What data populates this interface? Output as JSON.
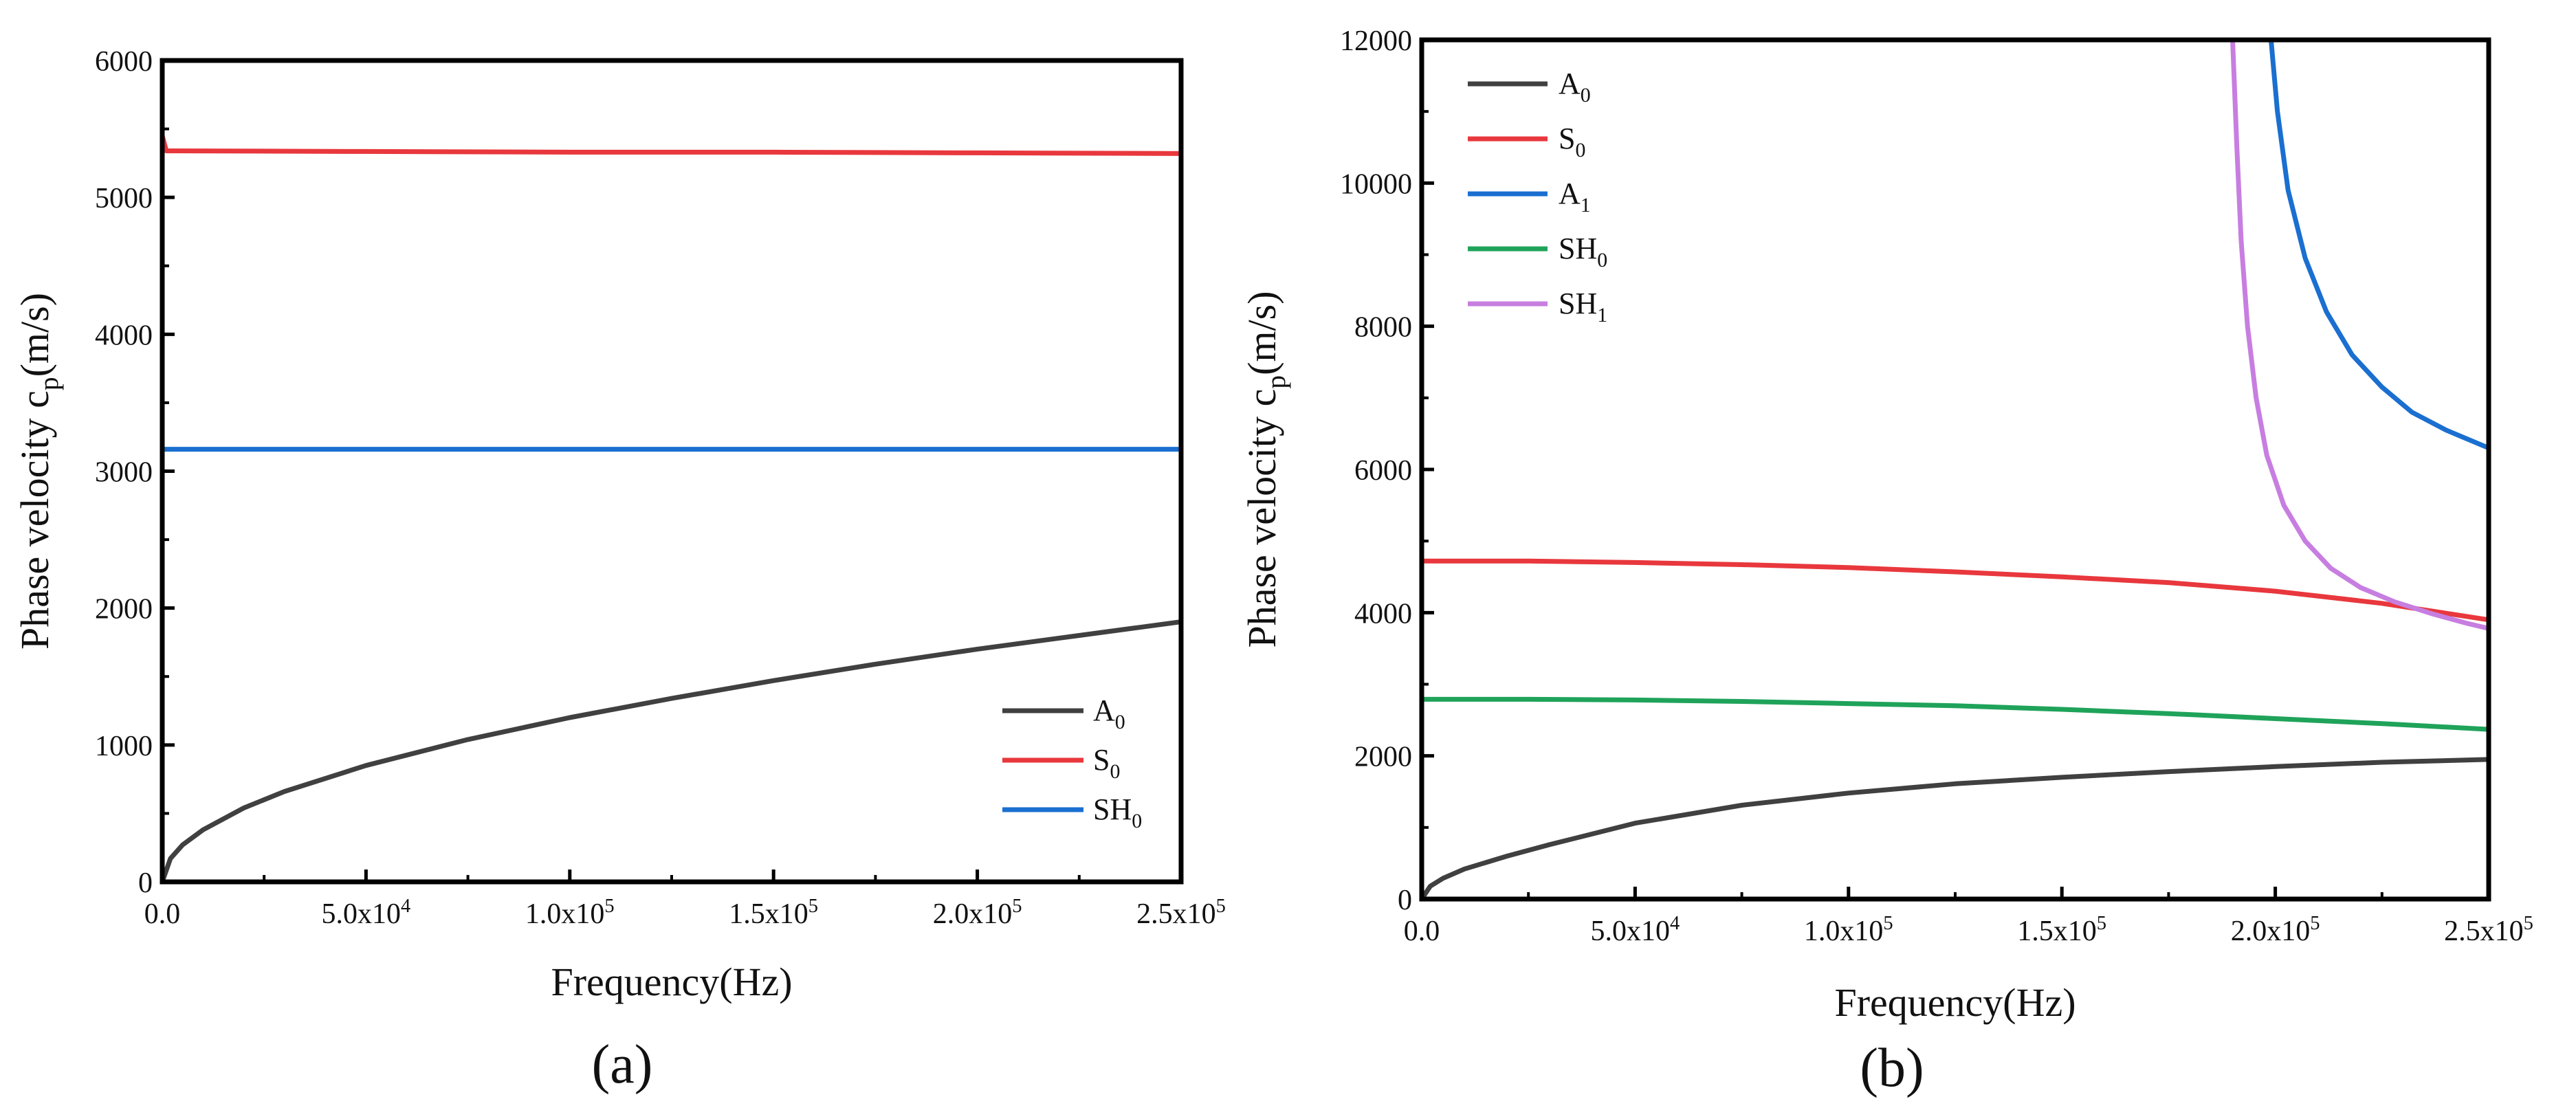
{
  "chart_data": [
    {
      "id": "a",
      "type": "line",
      "panel_label": "(a)",
      "xlabel": "Frequency(Hz)",
      "ylabel_main": "Phase velocity c",
      "ylabel_sub": "p",
      "ylabel_unit": "(m/s)",
      "xlim": [
        0,
        250000
      ],
      "ylim": [
        0,
        6000
      ],
      "xticks": [
        {
          "value": 0,
          "mant": "0.0",
          "exp": ""
        },
        {
          "value": 50000,
          "mant": "5.0x10",
          "exp": "4"
        },
        {
          "value": 100000,
          "mant": "1.0x10",
          "exp": "5"
        },
        {
          "value": 150000,
          "mant": "1.5x10",
          "exp": "5"
        },
        {
          "value": 200000,
          "mant": "2.0x10",
          "exp": "5"
        },
        {
          "value": 250000,
          "mant": "2.5x10",
          "exp": "5"
        }
      ],
      "yticks": [
        0,
        1000,
        2000,
        3000,
        4000,
        5000,
        6000
      ],
      "legend_position": "bottom-right",
      "series": [
        {
          "name": "A",
          "sub": "0",
          "color": "#404040",
          "x": [
            0,
            2000,
            5000,
            10000,
            20000,
            30000,
            50000,
            75000,
            100000,
            125000,
            150000,
            175000,
            200000,
            225000,
            250000
          ],
          "y": [
            0,
            170,
            270,
            380,
            540,
            660,
            850,
            1040,
            1200,
            1340,
            1470,
            1590,
            1700,
            1800,
            1900
          ]
        },
        {
          "name": "S",
          "sub": "0",
          "color": "#e8383d",
          "x": [
            0,
            1000,
            50000,
            100000,
            150000,
            200000,
            250000
          ],
          "y": [
            5450,
            5340,
            5335,
            5330,
            5330,
            5325,
            5320
          ]
        },
        {
          "name": "SH",
          "sub": "0",
          "color": "#1a6fd0",
          "x": [
            0,
            50000,
            100000,
            150000,
            200000,
            250000
          ],
          "y": [
            3160,
            3160,
            3160,
            3160,
            3160,
            3160
          ]
        }
      ]
    },
    {
      "id": "b",
      "type": "line",
      "panel_label": "(b)",
      "xlabel": "Frequency(Hz)",
      "ylabel_main": "Phase velocity c",
      "ylabel_sub": "p",
      "ylabel_unit": "(m/s)",
      "xlim": [
        0,
        250000
      ],
      "ylim": [
        0,
        12000
      ],
      "xticks": [
        {
          "value": 0,
          "mant": "0.0",
          "exp": ""
        },
        {
          "value": 50000,
          "mant": "5.0x10",
          "exp": "4"
        },
        {
          "value": 100000,
          "mant": "1.0x10",
          "exp": "5"
        },
        {
          "value": 150000,
          "mant": "1.5x10",
          "exp": "5"
        },
        {
          "value": 200000,
          "mant": "2.0x10",
          "exp": "5"
        },
        {
          "value": 250000,
          "mant": "2.5x10",
          "exp": "5"
        }
      ],
      "yticks": [
        0,
        2000,
        4000,
        6000,
        8000,
        10000,
        12000
      ],
      "legend_position": "top-left",
      "series": [
        {
          "name": "A",
          "sub": "0",
          "color": "#404040",
          "x": [
            0,
            2000,
            5000,
            10000,
            20000,
            30000,
            50000,
            75000,
            100000,
            125000,
            150000,
            175000,
            200000,
            225000,
            250000
          ],
          "y": [
            0,
            180,
            290,
            420,
            600,
            760,
            1060,
            1310,
            1480,
            1610,
            1700,
            1780,
            1850,
            1910,
            1950
          ]
        },
        {
          "name": "S",
          "sub": "0",
          "color": "#e8383d",
          "x": [
            0,
            25000,
            50000,
            75000,
            100000,
            125000,
            150000,
            175000,
            200000,
            225000,
            250000
          ],
          "y": [
            4720,
            4720,
            4700,
            4670,
            4630,
            4570,
            4500,
            4420,
            4300,
            4130,
            3900
          ]
        },
        {
          "name": "A",
          "sub": "1",
          "color": "#1a6fd0",
          "x": [
            199000,
            200500,
            203000,
            207000,
            212000,
            218000,
            225000,
            232000,
            240000,
            250000
          ],
          "y": [
            12000,
            11000,
            9900,
            8950,
            8200,
            7600,
            7150,
            6800,
            6550,
            6300
          ]
        },
        {
          "name": "SH",
          "sub": "0",
          "color": "#1fa35a",
          "x": [
            0,
            25000,
            50000,
            75000,
            100000,
            125000,
            150000,
            175000,
            200000,
            225000,
            250000
          ],
          "y": [
            2790,
            2790,
            2780,
            2760,
            2730,
            2700,
            2650,
            2590,
            2520,
            2450,
            2370
          ]
        },
        {
          "name": "SH",
          "sub": "1",
          "color": "#c77ee0",
          "x": [
            190000,
            191000,
            192000,
            193500,
            195500,
            198000,
            202000,
            207000,
            213000,
            220000,
            228000,
            237000,
            245000,
            250000
          ],
          "y": [
            12000,
            10500,
            9200,
            8000,
            7000,
            6200,
            5500,
            5000,
            4620,
            4350,
            4150,
            3980,
            3850,
            3780
          ]
        }
      ]
    }
  ]
}
